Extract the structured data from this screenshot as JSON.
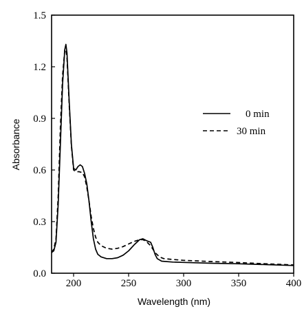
{
  "chart_data": {
    "type": "line",
    "title": "",
    "xlabel": "Wavelength  (nm)",
    "ylabel": "Absorbance",
    "xlim": [
      180,
      400
    ],
    "ylim": [
      0,
      1.5
    ],
    "x_ticks": [
      200,
      250,
      300,
      350,
      400
    ],
    "x_tick_labels": [
      "200",
      "250",
      "300",
      "350",
      "400"
    ],
    "y_ticks": [
      0,
      0.3,
      0.6,
      0.9,
      1.2,
      1.5
    ],
    "y_tick_labels": [
      "0.0",
      "0.3",
      "0.6",
      "0.9",
      "1.2",
      "1.5"
    ],
    "grid": false,
    "legend_position": "right",
    "series": [
      {
        "name": "0 min",
        "style": "solid",
        "color": "#000000",
        "points": [
          [
            180,
            0.12
          ],
          [
            182,
            0.13
          ],
          [
            184,
            0.18
          ],
          [
            186,
            0.4
          ],
          [
            188,
            0.75
          ],
          [
            190,
            1.1
          ],
          [
            192,
            1.3
          ],
          [
            193,
            1.33
          ],
          [
            194,
            1.28
          ],
          [
            196,
            1.0
          ],
          [
            198,
            0.75
          ],
          [
            200,
            0.61
          ],
          [
            202,
            0.6
          ],
          [
            204,
            0.62
          ],
          [
            206,
            0.63
          ],
          [
            208,
            0.62
          ],
          [
            210,
            0.58
          ],
          [
            212,
            0.52
          ],
          [
            214,
            0.42
          ],
          [
            216,
            0.3
          ],
          [
            218,
            0.2
          ],
          [
            220,
            0.14
          ],
          [
            222,
            0.11
          ],
          [
            225,
            0.095
          ],
          [
            230,
            0.085
          ],
          [
            235,
            0.085
          ],
          [
            240,
            0.09
          ],
          [
            245,
            0.105
          ],
          [
            250,
            0.13
          ],
          [
            255,
            0.165
          ],
          [
            260,
            0.195
          ],
          [
            263,
            0.2
          ],
          [
            266,
            0.19
          ],
          [
            268,
            0.185
          ],
          [
            270,
            0.18
          ],
          [
            272,
            0.15
          ],
          [
            274,
            0.11
          ],
          [
            276,
            0.085
          ],
          [
            280,
            0.07
          ],
          [
            290,
            0.065
          ],
          [
            300,
            0.063
          ],
          [
            325,
            0.058
          ],
          [
            350,
            0.055
          ],
          [
            375,
            0.05
          ],
          [
            400,
            0.045
          ]
        ]
      },
      {
        "name": "30 min",
        "style": "dashed",
        "color": "#000000",
        "points": [
          [
            180,
            0.12
          ],
          [
            182,
            0.14
          ],
          [
            184,
            0.2
          ],
          [
            186,
            0.45
          ],
          [
            188,
            0.85
          ],
          [
            190,
            1.15
          ],
          [
            192,
            1.3
          ],
          [
            193,
            1.3
          ],
          [
            194,
            1.25
          ],
          [
            196,
            0.98
          ],
          [
            198,
            0.74
          ],
          [
            200,
            0.6
          ],
          [
            202,
            0.59
          ],
          [
            205,
            0.59
          ],
          [
            208,
            0.585
          ],
          [
            210,
            0.56
          ],
          [
            212,
            0.5
          ],
          [
            214,
            0.42
          ],
          [
            216,
            0.33
          ],
          [
            218,
            0.26
          ],
          [
            220,
            0.21
          ],
          [
            222,
            0.18
          ],
          [
            225,
            0.16
          ],
          [
            230,
            0.145
          ],
          [
            235,
            0.14
          ],
          [
            240,
            0.145
          ],
          [
            245,
            0.155
          ],
          [
            250,
            0.17
          ],
          [
            255,
            0.185
          ],
          [
            260,
            0.195
          ],
          [
            263,
            0.195
          ],
          [
            266,
            0.185
          ],
          [
            270,
            0.16
          ],
          [
            274,
            0.12
          ],
          [
            278,
            0.095
          ],
          [
            282,
            0.085
          ],
          [
            290,
            0.08
          ],
          [
            300,
            0.075
          ],
          [
            325,
            0.068
          ],
          [
            350,
            0.062
          ],
          [
            375,
            0.055
          ],
          [
            400,
            0.048
          ]
        ]
      }
    ]
  }
}
